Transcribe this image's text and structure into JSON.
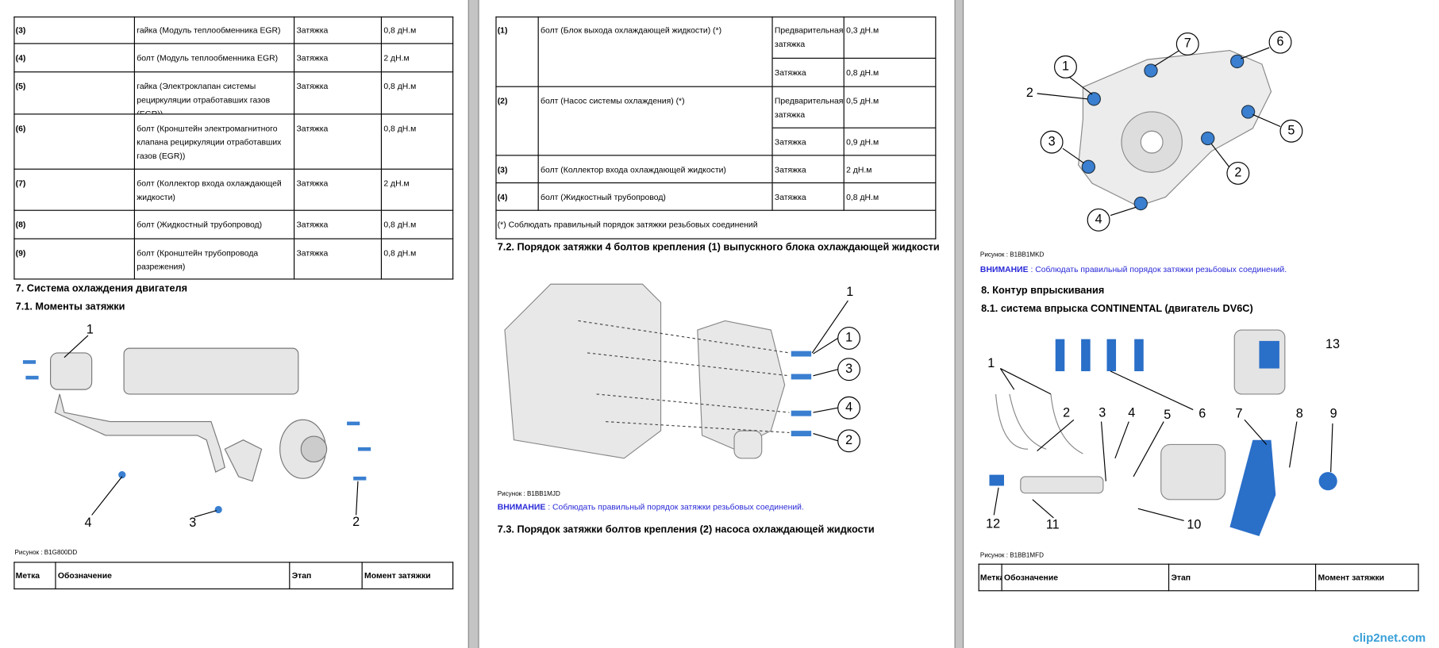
{
  "page1": {
    "table": {
      "rows": [
        [
          "(3)",
          "гайка (Модуль теплообменника EGR)",
          "Затяжка",
          "0,8 дН.м"
        ],
        [
          "(4)",
          "болт (Модуль теплообменника EGR)",
          "Затяжка",
          "2 дН.м"
        ],
        [
          "(5)",
          "гайка (Электроклапан системы рециркуляции отработавших газов (EGR))",
          "Затяжка",
          "0,8 дН.м"
        ],
        [
          "(6)",
          "болт (Кронштейн электромагнитного клапана рециркуляции отработавших газов (EGR))",
          "Затяжка",
          "0,8 дН.м"
        ],
        [
          "(7)",
          "болт (Коллектор входа охлаждающей жидкости)",
          "Затяжка",
          "2 дН.м"
        ],
        [
          "(8)",
          "болт (Жидкостный трубопровод)",
          "Затяжка",
          "0,8 дН.м"
        ],
        [
          "(9)",
          "болт (Кронштейн трубопровода разрежения)",
          "Затяжка",
          "0,8 дН.м"
        ]
      ]
    },
    "headings": [
      "7. Система охлаждения двигателя",
      "7.1. Моменты затяжки"
    ],
    "figure": {
      "callouts": [
        "1",
        "2",
        "3",
        "4"
      ],
      "caption": "Рисунок : B1G800DD"
    },
    "header_table": [
      "Метка",
      "Обозначение",
      "Этап",
      "Момент затяжки"
    ]
  },
  "page2": {
    "table": {
      "rows": [
        {
          "mark": "(1)",
          "name": "болт (Блок выхода охлаждающей жидкости) (*)",
          "stages": [
            [
              "Предварительная затяжка",
              "0,3 дН.м"
            ],
            [
              "Затяжка",
              "0,8 дН.м"
            ]
          ]
        },
        {
          "mark": "(2)",
          "name": "болт (Насос системы охлаждения) (*)",
          "stages": [
            [
              "Предварительная затяжка",
              "0,5 дН.м"
            ],
            [
              "Затяжка",
              "0,9 дН.м"
            ]
          ]
        },
        {
          "mark": "(3)",
          "name": "болт (Коллектор входа охлаждающей жидкости)",
          "stages": [
            [
              "Затяжка",
              "2 дН.м"
            ]
          ]
        },
        {
          "mark": "(4)",
          "name": "болт (Жидкостный трубопровод)",
          "stages": [
            [
              "Затяжка",
              "0,8 дН.м"
            ]
          ]
        }
      ],
      "note": "(*) Соблюдать правильный порядок затяжки резьбовых соединений"
    },
    "heading": "7.2. Порядок затяжки 4 болтов крепления (1) выпускного блока охлаждающей жидкости",
    "figure": {
      "callouts": [
        "1",
        "1",
        "3",
        "4",
        "2"
      ],
      "caption": "Рисунок : B1BB1MJD"
    },
    "warning": {
      "label": "ВНИМАНИЕ",
      "text": " : Соблюдать правильный порядок затяжки резьбовых соединений."
    },
    "heading2": "7.3. Порядок затяжки болтов крепления (2) насоса охлаждающей жидкости"
  },
  "page3": {
    "figure1": {
      "callouts": [
        "1",
        "7",
        "6",
        "2",
        "5",
        "3",
        "2",
        "4"
      ],
      "caption": "Рисунок : B1BB1MKD"
    },
    "warning": {
      "label": "ВНИМАНИЕ",
      "text": " : Соблюдать правильный порядок затяжки резьбовых соединений."
    },
    "headings": [
      "8. Контур впрыскивания",
      "8.1. система впрыска CONTINENTAL (двигатель DV6C)"
    ],
    "figure2": {
      "callouts": [
        "1",
        "13",
        "2",
        "3",
        "4",
        "5",
        "6",
        "7",
        "8",
        "9",
        "12",
        "11",
        "10"
      ],
      "caption": "Рисунок : B1BB1MFD"
    },
    "header_table": [
      "Метка",
      "Обозначение",
      "Этап",
      "Момент затяжки"
    ]
  },
  "watermark": "clip2net.com"
}
